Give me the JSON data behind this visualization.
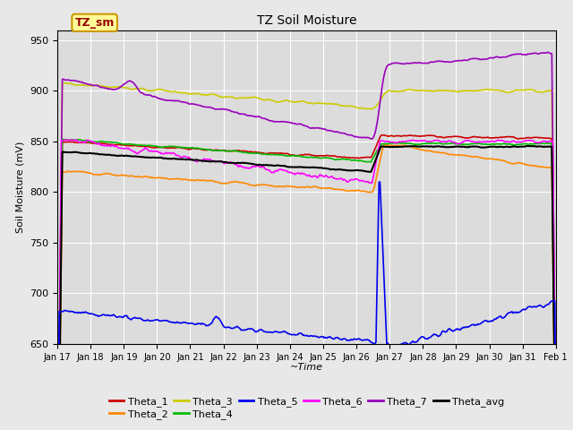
{
  "title": "TZ Soil Moisture",
  "xlabel": "~Time",
  "ylabel": "Soil Moisture (mV)",
  "ylim": [
    650,
    960
  ],
  "yticks": [
    650,
    700,
    750,
    800,
    850,
    900,
    950
  ],
  "bg_color": "#e8e8e8",
  "plot_bg": "#dcdcdc",
  "series_colors": {
    "Theta_1": "#cc0000",
    "Theta_2": "#ff8800",
    "Theta_3": "#cccc00",
    "Theta_4": "#00bb00",
    "Theta_5": "#0000ee",
    "Theta_6": "#ff00ff",
    "Theta_7": "#9900bb",
    "Theta_avg": "#000000"
  },
  "legend_label": "TZ_sm",
  "legend_bg": "#ffff99",
  "legend_border": "#cc9900",
  "event_day": 26.6,
  "num_points": 500
}
